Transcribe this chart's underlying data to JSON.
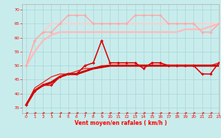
{
  "xlabel": "Vent moyen/en rafales ( km/h )",
  "xlim": [
    -0.5,
    23
  ],
  "ylim": [
    33,
    72
  ],
  "yticks": [
    35,
    40,
    45,
    50,
    55,
    60,
    65,
    70
  ],
  "xticks": [
    0,
    1,
    2,
    3,
    4,
    5,
    6,
    7,
    8,
    9,
    10,
    11,
    12,
    13,
    14,
    15,
    16,
    17,
    18,
    19,
    20,
    21,
    22,
    23
  ],
  "bg_color": "#c8ecec",
  "grid_color": "#a8d4d4",
  "series": [
    {
      "x": [
        0,
        1,
        2,
        3,
        4,
        5,
        6,
        7,
        8,
        9,
        10,
        11,
        12,
        13,
        14,
        15,
        16,
        17,
        18,
        19,
        20,
        21,
        22,
        23
      ],
      "y": [
        36,
        41,
        43,
        44,
        46,
        47,
        47,
        48,
        49,
        49.5,
        50,
        50,
        50,
        50,
        50,
        50,
        50,
        50,
        50,
        50,
        50,
        50,
        50,
        50
      ],
      "color": "#cc0000",
      "lw": 2.2,
      "marker": null,
      "ms": 0,
      "zorder": 4
    },
    {
      "x": [
        0,
        1,
        2,
        3,
        4,
        5,
        6,
        7,
        8,
        9,
        10,
        11,
        12,
        13,
        14,
        15,
        16,
        17,
        18,
        19,
        20,
        21,
        22,
        23
      ],
      "y": [
        36,
        41,
        43,
        43,
        46,
        47,
        47,
        50,
        51,
        59,
        51,
        51,
        51,
        51,
        49,
        51,
        51,
        50,
        50,
        50,
        50,
        47,
        47,
        51
      ],
      "color": "#dd0000",
      "lw": 1.2,
      "marker": "D",
      "ms": 2.0,
      "zorder": 5
    },
    {
      "x": [
        0,
        1,
        2,
        3,
        4,
        5,
        6,
        7,
        8,
        9,
        10,
        11,
        12,
        13,
        14,
        15,
        16,
        17,
        18,
        19,
        20,
        21,
        22,
        23
      ],
      "y": [
        36,
        42,
        44,
        46,
        47,
        47,
        48,
        49,
        49,
        50,
        50,
        50,
        50,
        50,
        50,
        50,
        50,
        50,
        50,
        50,
        50,
        50,
        50,
        51
      ],
      "color": "#ee2222",
      "lw": 1.0,
      "marker": null,
      "ms": 0,
      "zorder": 3
    },
    {
      "x": [
        0,
        1,
        2,
        3,
        4,
        5,
        6,
        7,
        8,
        9,
        10,
        11,
        12,
        13,
        14,
        15,
        16,
        17,
        18,
        19,
        20,
        21,
        22,
        23
      ],
      "y": [
        50,
        55,
        59,
        61,
        62,
        62,
        62,
        62,
        62,
        62,
        62,
        62,
        62,
        62,
        62,
        62,
        62,
        62,
        62,
        63,
        63,
        63,
        64,
        65
      ],
      "color": "#ffbbbb",
      "lw": 1.8,
      "marker": null,
      "ms": 0,
      "zorder": 2
    },
    {
      "x": [
        0,
        1,
        2,
        3,
        4,
        5,
        6,
        7,
        8,
        9,
        10,
        11,
        12,
        13,
        14,
        15,
        16,
        17,
        18,
        19,
        20,
        21,
        22,
        23
      ],
      "y": [
        50,
        59,
        62,
        65,
        65,
        65,
        65,
        65,
        65,
        65,
        65,
        65,
        65,
        65,
        65,
        65,
        65,
        65,
        65,
        65,
        65,
        65,
        65,
        65
      ],
      "color": "#ffcccc",
      "lw": 1.2,
      "marker": "D",
      "ms": 2.0,
      "zorder": 4
    },
    {
      "x": [
        0,
        1,
        2,
        3,
        4,
        5,
        6,
        7,
        8,
        9,
        10,
        11,
        12,
        13,
        14,
        15,
        16,
        17,
        18,
        19,
        20,
        21,
        22,
        23
      ],
      "y": [
        50,
        59,
        62,
        62,
        65,
        68,
        68,
        68,
        65,
        65,
        65,
        65,
        65,
        68,
        68,
        68,
        68,
        65,
        65,
        65,
        65,
        62,
        62,
        65
      ],
      "color": "#ffaaaa",
      "lw": 1.2,
      "marker": "D",
      "ms": 2.0,
      "zorder": 4
    },
    {
      "x": [
        0,
        1,
        2,
        3,
        4,
        5,
        6,
        7,
        8,
        9,
        10,
        11,
        12,
        13,
        14,
        15,
        16,
        17,
        18,
        19,
        20,
        21,
        22,
        23
      ],
      "y": [
        33,
        33,
        33,
        33,
        33,
        33,
        33,
        33,
        33,
        33,
        33,
        33,
        33,
        33,
        33,
        33,
        33,
        33,
        33,
        33,
        33,
        33,
        33,
        33
      ],
      "color": "#cc0000",
      "lw": 0.8,
      "marker": "<",
      "ms": 2.5,
      "zorder": 2
    }
  ]
}
